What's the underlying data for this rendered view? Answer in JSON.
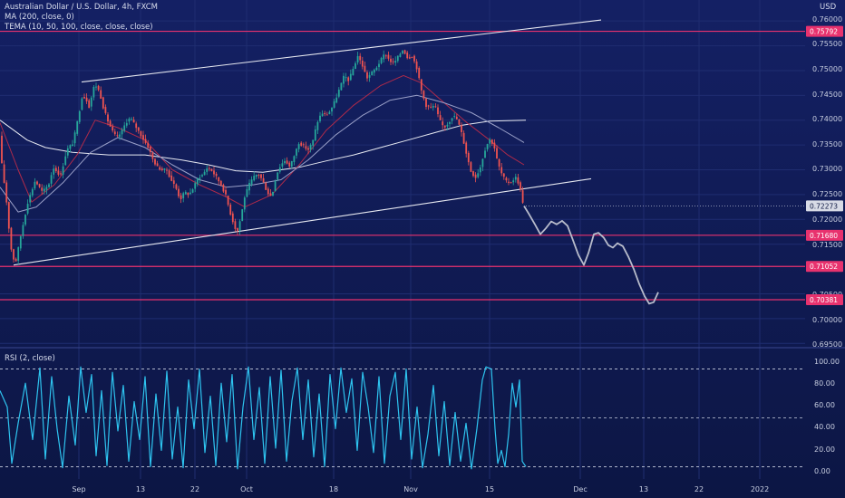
{
  "header": {
    "symbol_line": "Australian Dollar / U.S. Dollar, 4h, FXCM",
    "ma_line": "MA (200, close, 0)",
    "tema_line": "TEMA (10, 50, 100, close, close, close)",
    "currency": "USD"
  },
  "rsi_panel": {
    "label": "RSI (2, close)"
  },
  "colors": {
    "background": "#0f1a4a",
    "up_candle": "#26a69a",
    "down_candle": "#ef5350",
    "support_resistance": "#e8326e",
    "rsi_line": "#2ec4f0",
    "trendline": "#e6e8f0"
  },
  "chart_data": {
    "type": "candlestick",
    "title": "Australian Dollar / U.S. Dollar, 4h, FXCM",
    "x_tick_labels": [
      "Sep",
      "13",
      "22",
      "Oct",
      "18",
      "Nov",
      "15",
      "Dec",
      "13",
      "22",
      "2022"
    ],
    "y_tick_labels": [
      "0.76000",
      "0.75500",
      "0.75000",
      "0.74500",
      "0.74000",
      "0.73500",
      "0.73000",
      "0.72500",
      "0.72000",
      "0.71500",
      "0.70500",
      "0.70000",
      "0.69500"
    ],
    "ylim": [
      0.6945,
      0.7635
    ],
    "current_price": "0.72273",
    "horizontal_levels": [
      {
        "value": 0.75792,
        "label": "0.75792"
      },
      {
        "value": 0.7168,
        "label": "0.71680"
      },
      {
        "value": 0.71052,
        "label": "0.71052"
      },
      {
        "value": 0.70381,
        "label": "0.70381"
      }
    ],
    "rsi_ticks": [
      "100.00",
      "80.00",
      "60.00",
      "40.00",
      "20.00",
      "0.00"
    ],
    "rsi_levels": [
      95,
      50,
      5
    ],
    "rsi_ylim": [
      -3,
      103
    ],
    "price_path": [
      [
        0,
        0.7385
      ],
      [
        3,
        0.7315
      ],
      [
        8,
        0.7245
      ],
      [
        13,
        0.7145
      ],
      [
        18,
        0.7108
      ],
      [
        25,
        0.7175
      ],
      [
        32,
        0.7235
      ],
      [
        40,
        0.7278
      ],
      [
        48,
        0.7255
      ],
      [
        55,
        0.727
      ],
      [
        60,
        0.7305
      ],
      [
        68,
        0.7288
      ],
      [
        75,
        0.734
      ],
      [
        82,
        0.7355
      ],
      [
        88,
        0.741
      ],
      [
        92,
        0.745
      ],
      [
        97,
        0.744
      ],
      [
        100,
        0.7425
      ],
      [
        104,
        0.7465
      ],
      [
        108,
        0.747
      ],
      [
        112,
        0.745
      ],
      [
        116,
        0.742
      ],
      [
        121,
        0.7395
      ],
      [
        126,
        0.7375
      ],
      [
        130,
        0.7365
      ],
      [
        135,
        0.7375
      ],
      [
        140,
        0.7395
      ],
      [
        145,
        0.7405
      ],
      [
        150,
        0.739
      ],
      [
        155,
        0.7375
      ],
      [
        160,
        0.736
      ],
      [
        165,
        0.7345
      ],
      [
        170,
        0.732
      ],
      [
        175,
        0.7305
      ],
      [
        180,
        0.73
      ],
      [
        185,
        0.73
      ],
      [
        190,
        0.728
      ],
      [
        195,
        0.7265
      ],
      [
        200,
        0.724
      ],
      [
        205,
        0.7255
      ],
      [
        210,
        0.725
      ],
      [
        215,
        0.7265
      ],
      [
        220,
        0.7285
      ],
      [
        225,
        0.729
      ],
      [
        230,
        0.7305
      ],
      [
        235,
        0.7298
      ],
      [
        240,
        0.7285
      ],
      [
        245,
        0.727
      ],
      [
        250,
        0.725
      ],
      [
        255,
        0.7215
      ],
      [
        260,
        0.7185
      ],
      [
        263,
        0.7175
      ],
      [
        267,
        0.7205
      ],
      [
        271,
        0.7245
      ],
      [
        276,
        0.727
      ],
      [
        281,
        0.7285
      ],
      [
        286,
        0.7293
      ],
      [
        291,
        0.7278
      ],
      [
        296,
        0.7255
      ],
      [
        301,
        0.7245
      ],
      [
        306,
        0.729
      ],
      [
        311,
        0.731
      ],
      [
        316,
        0.732
      ],
      [
        321,
        0.7305
      ],
      [
        326,
        0.733
      ],
      [
        331,
        0.7355
      ],
      [
        336,
        0.7348
      ],
      [
        341,
        0.734
      ],
      [
        346,
        0.7355
      ],
      [
        351,
        0.7395
      ],
      [
        356,
        0.7415
      ],
      [
        361,
        0.741
      ],
      [
        366,
        0.742
      ],
      [
        371,
        0.744
      ],
      [
        376,
        0.7465
      ],
      [
        381,
        0.749
      ],
      [
        386,
        0.748
      ],
      [
        391,
        0.7505
      ],
      [
        396,
        0.753
      ],
      [
        401,
        0.751
      ],
      [
        406,
        0.7485
      ],
      [
        411,
        0.7495
      ],
      [
        416,
        0.7505
      ],
      [
        421,
        0.752
      ],
      [
        426,
        0.7535
      ],
      [
        431,
        0.752
      ],
      [
        436,
        0.7515
      ],
      [
        441,
        0.753
      ],
      [
        446,
        0.7543
      ],
      [
        451,
        0.7525
      ],
      [
        456,
        0.753
      ],
      [
        461,
        0.7505
      ],
      [
        466,
        0.746
      ],
      [
        471,
        0.743
      ],
      [
        476,
        0.7425
      ],
      [
        481,
        0.743
      ],
      [
        486,
        0.74
      ],
      [
        491,
        0.7385
      ],
      [
        496,
        0.7395
      ],
      [
        501,
        0.741
      ],
      [
        506,
        0.74
      ],
      [
        511,
        0.737
      ],
      [
        516,
        0.733
      ],
      [
        521,
        0.7295
      ],
      [
        526,
        0.7285
      ],
      [
        531,
        0.7305
      ],
      [
        536,
        0.734
      ],
      [
        541,
        0.7362
      ],
      [
        546,
        0.735
      ],
      [
        550,
        0.7315
      ],
      [
        555,
        0.729
      ],
      [
        560,
        0.7275
      ],
      [
        565,
        0.7275
      ],
      [
        570,
        0.7285
      ],
      [
        574,
        0.727
      ],
      [
        578,
        0.7235
      ],
      [
        580,
        0.7227
      ]
    ],
    "ma200": [
      [
        0,
        0.74
      ],
      [
        15,
        0.738
      ],
      [
        30,
        0.736
      ],
      [
        50,
        0.7345
      ],
      [
        80,
        0.7335
      ],
      [
        120,
        0.733
      ],
      [
        160,
        0.733
      ],
      [
        200,
        0.732
      ],
      [
        230,
        0.731
      ],
      [
        260,
        0.7298
      ],
      [
        290,
        0.7295
      ],
      [
        330,
        0.7305
      ],
      [
        360,
        0.7318
      ],
      [
        390,
        0.733
      ],
      [
        420,
        0.7345
      ],
      [
        450,
        0.736
      ],
      [
        480,
        0.7375
      ],
      [
        510,
        0.739
      ],
      [
        540,
        0.7398
      ],
      [
        580,
        0.74
      ]
    ],
    "tema_fast": [
      [
        0,
        0.7395
      ],
      [
        20,
        0.73
      ],
      [
        35,
        0.7235
      ],
      [
        60,
        0.727
      ],
      [
        85,
        0.733
      ],
      [
        105,
        0.74
      ],
      [
        130,
        0.7385
      ],
      [
        160,
        0.736
      ],
      [
        190,
        0.73
      ],
      [
        220,
        0.727
      ],
      [
        250,
        0.7245
      ],
      [
        270,
        0.7225
      ],
      [
        300,
        0.725
      ],
      [
        330,
        0.731
      ],
      [
        360,
        0.738
      ],
      [
        390,
        0.743
      ],
      [
        420,
        0.747
      ],
      [
        445,
        0.749
      ],
      [
        465,
        0.7475
      ],
      [
        490,
        0.7435
      ],
      [
        515,
        0.7395
      ],
      [
        540,
        0.736
      ],
      [
        560,
        0.733
      ],
      [
        578,
        0.731
      ]
    ],
    "tema_slow": [
      [
        0,
        0.7265
      ],
      [
        20,
        0.7215
      ],
      [
        40,
        0.7225
      ],
      [
        70,
        0.7275
      ],
      [
        100,
        0.7335
      ],
      [
        130,
        0.7365
      ],
      [
        160,
        0.7345
      ],
      [
        190,
        0.731
      ],
      [
        220,
        0.728
      ],
      [
        250,
        0.7265
      ],
      [
        280,
        0.727
      ],
      [
        310,
        0.728
      ],
      [
        340,
        0.732
      ],
      [
        370,
        0.737
      ],
      [
        400,
        0.741
      ],
      [
        430,
        0.744
      ],
      [
        460,
        0.745
      ],
      [
        490,
        0.7435
      ],
      [
        520,
        0.7415
      ],
      [
        550,
        0.7385
      ],
      [
        578,
        0.7355
      ]
    ],
    "trendline_upper": [
      [
        90,
        0.7477
      ],
      [
        663,
        0.7602
      ]
    ],
    "trendline_lower": [
      [
        15,
        0.7108
      ],
      [
        652,
        0.7282
      ]
    ],
    "forecast_path": [
      [
        578,
        0.7227
      ],
      [
        583,
        0.7212
      ],
      [
        590,
        0.719
      ],
      [
        596,
        0.717
      ],
      [
        602,
        0.7182
      ],
      [
        608,
        0.7196
      ],
      [
        614,
        0.719
      ],
      [
        620,
        0.7197
      ],
      [
        626,
        0.7187
      ],
      [
        632,
        0.7158
      ],
      [
        638,
        0.7128
      ],
      [
        644,
        0.7108
      ],
      [
        649,
        0.7132
      ],
      [
        655,
        0.717
      ],
      [
        660,
        0.7173
      ],
      [
        666,
        0.7163
      ],
      [
        671,
        0.7148
      ],
      [
        676,
        0.7143
      ],
      [
        681,
        0.7152
      ],
      [
        687,
        0.7146
      ],
      [
        693,
        0.7125
      ],
      [
        699,
        0.71
      ],
      [
        705,
        0.707
      ],
      [
        711,
        0.7045
      ],
      [
        716,
        0.703
      ],
      [
        721,
        0.7033
      ],
      [
        726,
        0.7053
      ]
    ],
    "rsi_series": [
      [
        0,
        75
      ],
      [
        8,
        60
      ],
      [
        13,
        8
      ],
      [
        20,
        45
      ],
      [
        28,
        82
      ],
      [
        36,
        30
      ],
      [
        44,
        96
      ],
      [
        50,
        12
      ],
      [
        57,
        88
      ],
      [
        63,
        40
      ],
      [
        69,
        4
      ],
      [
        76,
        70
      ],
      [
        83,
        25
      ],
      [
        89,
        97
      ],
      [
        95,
        55
      ],
      [
        101,
        90
      ],
      [
        106,
        15
      ],
      [
        112,
        75
      ],
      [
        118,
        6
      ],
      [
        124,
        92
      ],
      [
        130,
        38
      ],
      [
        136,
        80
      ],
      [
        142,
        10
      ],
      [
        148,
        65
      ],
      [
        154,
        30
      ],
      [
        160,
        88
      ],
      [
        166,
        5
      ],
      [
        172,
        72
      ],
      [
        178,
        20
      ],
      [
        184,
        93
      ],
      [
        190,
        12
      ],
      [
        196,
        60
      ],
      [
        202,
        4
      ],
      [
        208,
        85
      ],
      [
        214,
        40
      ],
      [
        220,
        95
      ],
      [
        226,
        18
      ],
      [
        232,
        70
      ],
      [
        238,
        6
      ],
      [
        244,
        82
      ],
      [
        250,
        28
      ],
      [
        256,
        90
      ],
      [
        262,
        3
      ],
      [
        268,
        60
      ],
      [
        274,
        97
      ],
      [
        280,
        30
      ],
      [
        286,
        78
      ],
      [
        292,
        8
      ],
      [
        298,
        88
      ],
      [
        304,
        22
      ],
      [
        310,
        94
      ],
      [
        316,
        10
      ],
      [
        322,
        66
      ],
      [
        328,
        96
      ],
      [
        334,
        30
      ],
      [
        340,
        85
      ],
      [
        346,
        14
      ],
      [
        352,
        72
      ],
      [
        358,
        5
      ],
      [
        364,
        90
      ],
      [
        370,
        40
      ],
      [
        376,
        96
      ],
      [
        382,
        55
      ],
      [
        388,
        86
      ],
      [
        394,
        20
      ],
      [
        400,
        92
      ],
      [
        406,
        60
      ],
      [
        412,
        18
      ],
      [
        418,
        88
      ],
      [
        424,
        8
      ],
      [
        430,
        70
      ],
      [
        436,
        92
      ],
      [
        442,
        30
      ],
      [
        448,
        95
      ],
      [
        454,
        12
      ],
      [
        460,
        60
      ],
      [
        466,
        4
      ],
      [
        472,
        35
      ],
      [
        478,
        80
      ],
      [
        484,
        15
      ],
      [
        490,
        65
      ],
      [
        496,
        6
      ],
      [
        502,
        55
      ],
      [
        508,
        10
      ],
      [
        514,
        45
      ],
      [
        520,
        3
      ],
      [
        526,
        40
      ],
      [
        532,
        85
      ],
      [
        536,
        97
      ],
      [
        542,
        95
      ],
      [
        546,
        40
      ],
      [
        549,
        8
      ],
      [
        553,
        20
      ],
      [
        557,
        5
      ],
      [
        561,
        35
      ],
      [
        565,
        82
      ],
      [
        569,
        60
      ],
      [
        573,
        85
      ],
      [
        576,
        10
      ],
      [
        580,
        5
      ]
    ]
  }
}
